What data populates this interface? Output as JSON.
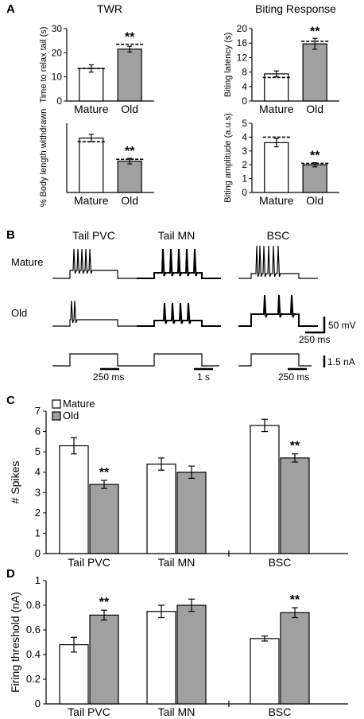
{
  "panel_letters": {
    "a": "A",
    "b": "B",
    "c": "C",
    "d": "D"
  },
  "panelA": {
    "left_title": "TWR",
    "right_title": "Biting Response",
    "categories": [
      "Mature",
      "Old"
    ],
    "colors": {
      "mature": "#ffffff",
      "old": "#a0a0a0"
    }
  },
  "panelB": {
    "columns": [
      "Tail PVC",
      "Tail MN",
      "BSC"
    ],
    "rows": [
      "Mature",
      "Old"
    ],
    "scale_labels": {
      "voltage": "50 mV",
      "time_vertical": "250 ms",
      "current": "1.5 nA",
      "time_pvc": "250 ms",
      "time_mn": "1 s",
      "time_bsc": "250 ms"
    }
  },
  "chart_data": [
    {
      "id": "A1",
      "type": "bar",
      "title": "",
      "ylabel": "Time to relax tail (s)",
      "xlabel": "",
      "categories": [
        "Mature",
        "Old"
      ],
      "values": [
        13.5,
        21.5
      ],
      "errors": [
        1.5,
        1.2
      ],
      "dashed": [
        13.5,
        23.5
      ],
      "ylim": [
        0,
        30
      ],
      "yticks": [
        0,
        10,
        20,
        30
      ],
      "significance": [
        "",
        "**"
      ]
    },
    {
      "id": "A2",
      "type": "bar",
      "title": "",
      "ylabel": "Biting latency (s)",
      "xlabel": "",
      "categories": [
        "Mature",
        "Old"
      ],
      "values": [
        7.5,
        15.8
      ],
      "errors": [
        0.8,
        1.5
      ],
      "dashed": [
        6.5,
        16.5
      ],
      "ylim": [
        0,
        20
      ],
      "yticks": [
        0,
        4,
        8,
        12,
        16,
        20
      ],
      "significance": [
        "",
        "**"
      ]
    },
    {
      "id": "A3",
      "type": "bar",
      "title": "",
      "ylabel": "% Body length withdrawn",
      "xlabel": "",
      "categories": [
        "Mature",
        "Old"
      ],
      "values": [
        11.8,
        6.8
      ],
      "errors": [
        0.8,
        0.6
      ],
      "dashed": [
        11.0,
        7.2
      ],
      "ylim": [
        0,
        15
      ],
      "yticks": [],
      "significance": [
        "",
        "**"
      ]
    },
    {
      "id": "A4",
      "type": "bar",
      "title": "",
      "ylabel": "Biting amplitude (a.u.s)",
      "xlabel": "",
      "categories": [
        "Mature",
        "Old"
      ],
      "values": [
        3.6,
        2.0
      ],
      "errors": [
        0.3,
        0.15
      ],
      "dashed": [
        4.0,
        2.1
      ],
      "ylim": [
        0,
        5
      ],
      "yticks": [
        0,
        1,
        2,
        3,
        4,
        5
      ],
      "significance": [
        "",
        "**"
      ]
    },
    {
      "id": "C",
      "type": "bar",
      "title": "",
      "ylabel": "# Spikes",
      "xlabel": "",
      "categories": [
        "Tail PVC",
        "Tail MN",
        "BSC"
      ],
      "series": [
        {
          "name": "Mature",
          "values": [
            5.3,
            4.4,
            6.3
          ],
          "errors": [
            0.4,
            0.3,
            0.3
          ]
        },
        {
          "name": "Old",
          "values": [
            3.4,
            4.0,
            4.7
          ],
          "errors": [
            0.2,
            0.3,
            0.2
          ]
        }
      ],
      "ylim": [
        0,
        7
      ],
      "yticks": [
        0,
        1,
        2,
        3,
        4,
        5,
        6,
        7
      ],
      "significance": [
        "**",
        "",
        "**"
      ],
      "legend": "top-left"
    },
    {
      "id": "D",
      "type": "bar",
      "title": "",
      "ylabel": "Firing threshold (nA)",
      "xlabel": "",
      "categories": [
        "Tail PVC",
        "Tail MN",
        "BSC"
      ],
      "series": [
        {
          "name": "Mature",
          "values": [
            0.48,
            0.75,
            0.53
          ],
          "errors": [
            0.06,
            0.05,
            0.02
          ]
        },
        {
          "name": "Old",
          "values": [
            0.72,
            0.8,
            0.74
          ],
          "errors": [
            0.04,
            0.05,
            0.04
          ]
        }
      ],
      "ylim": [
        0,
        1.0
      ],
      "yticks": [
        0,
        0.2,
        0.4,
        0.6,
        0.8,
        1.0
      ],
      "significance": [
        "**",
        "",
        "**"
      ]
    }
  ]
}
